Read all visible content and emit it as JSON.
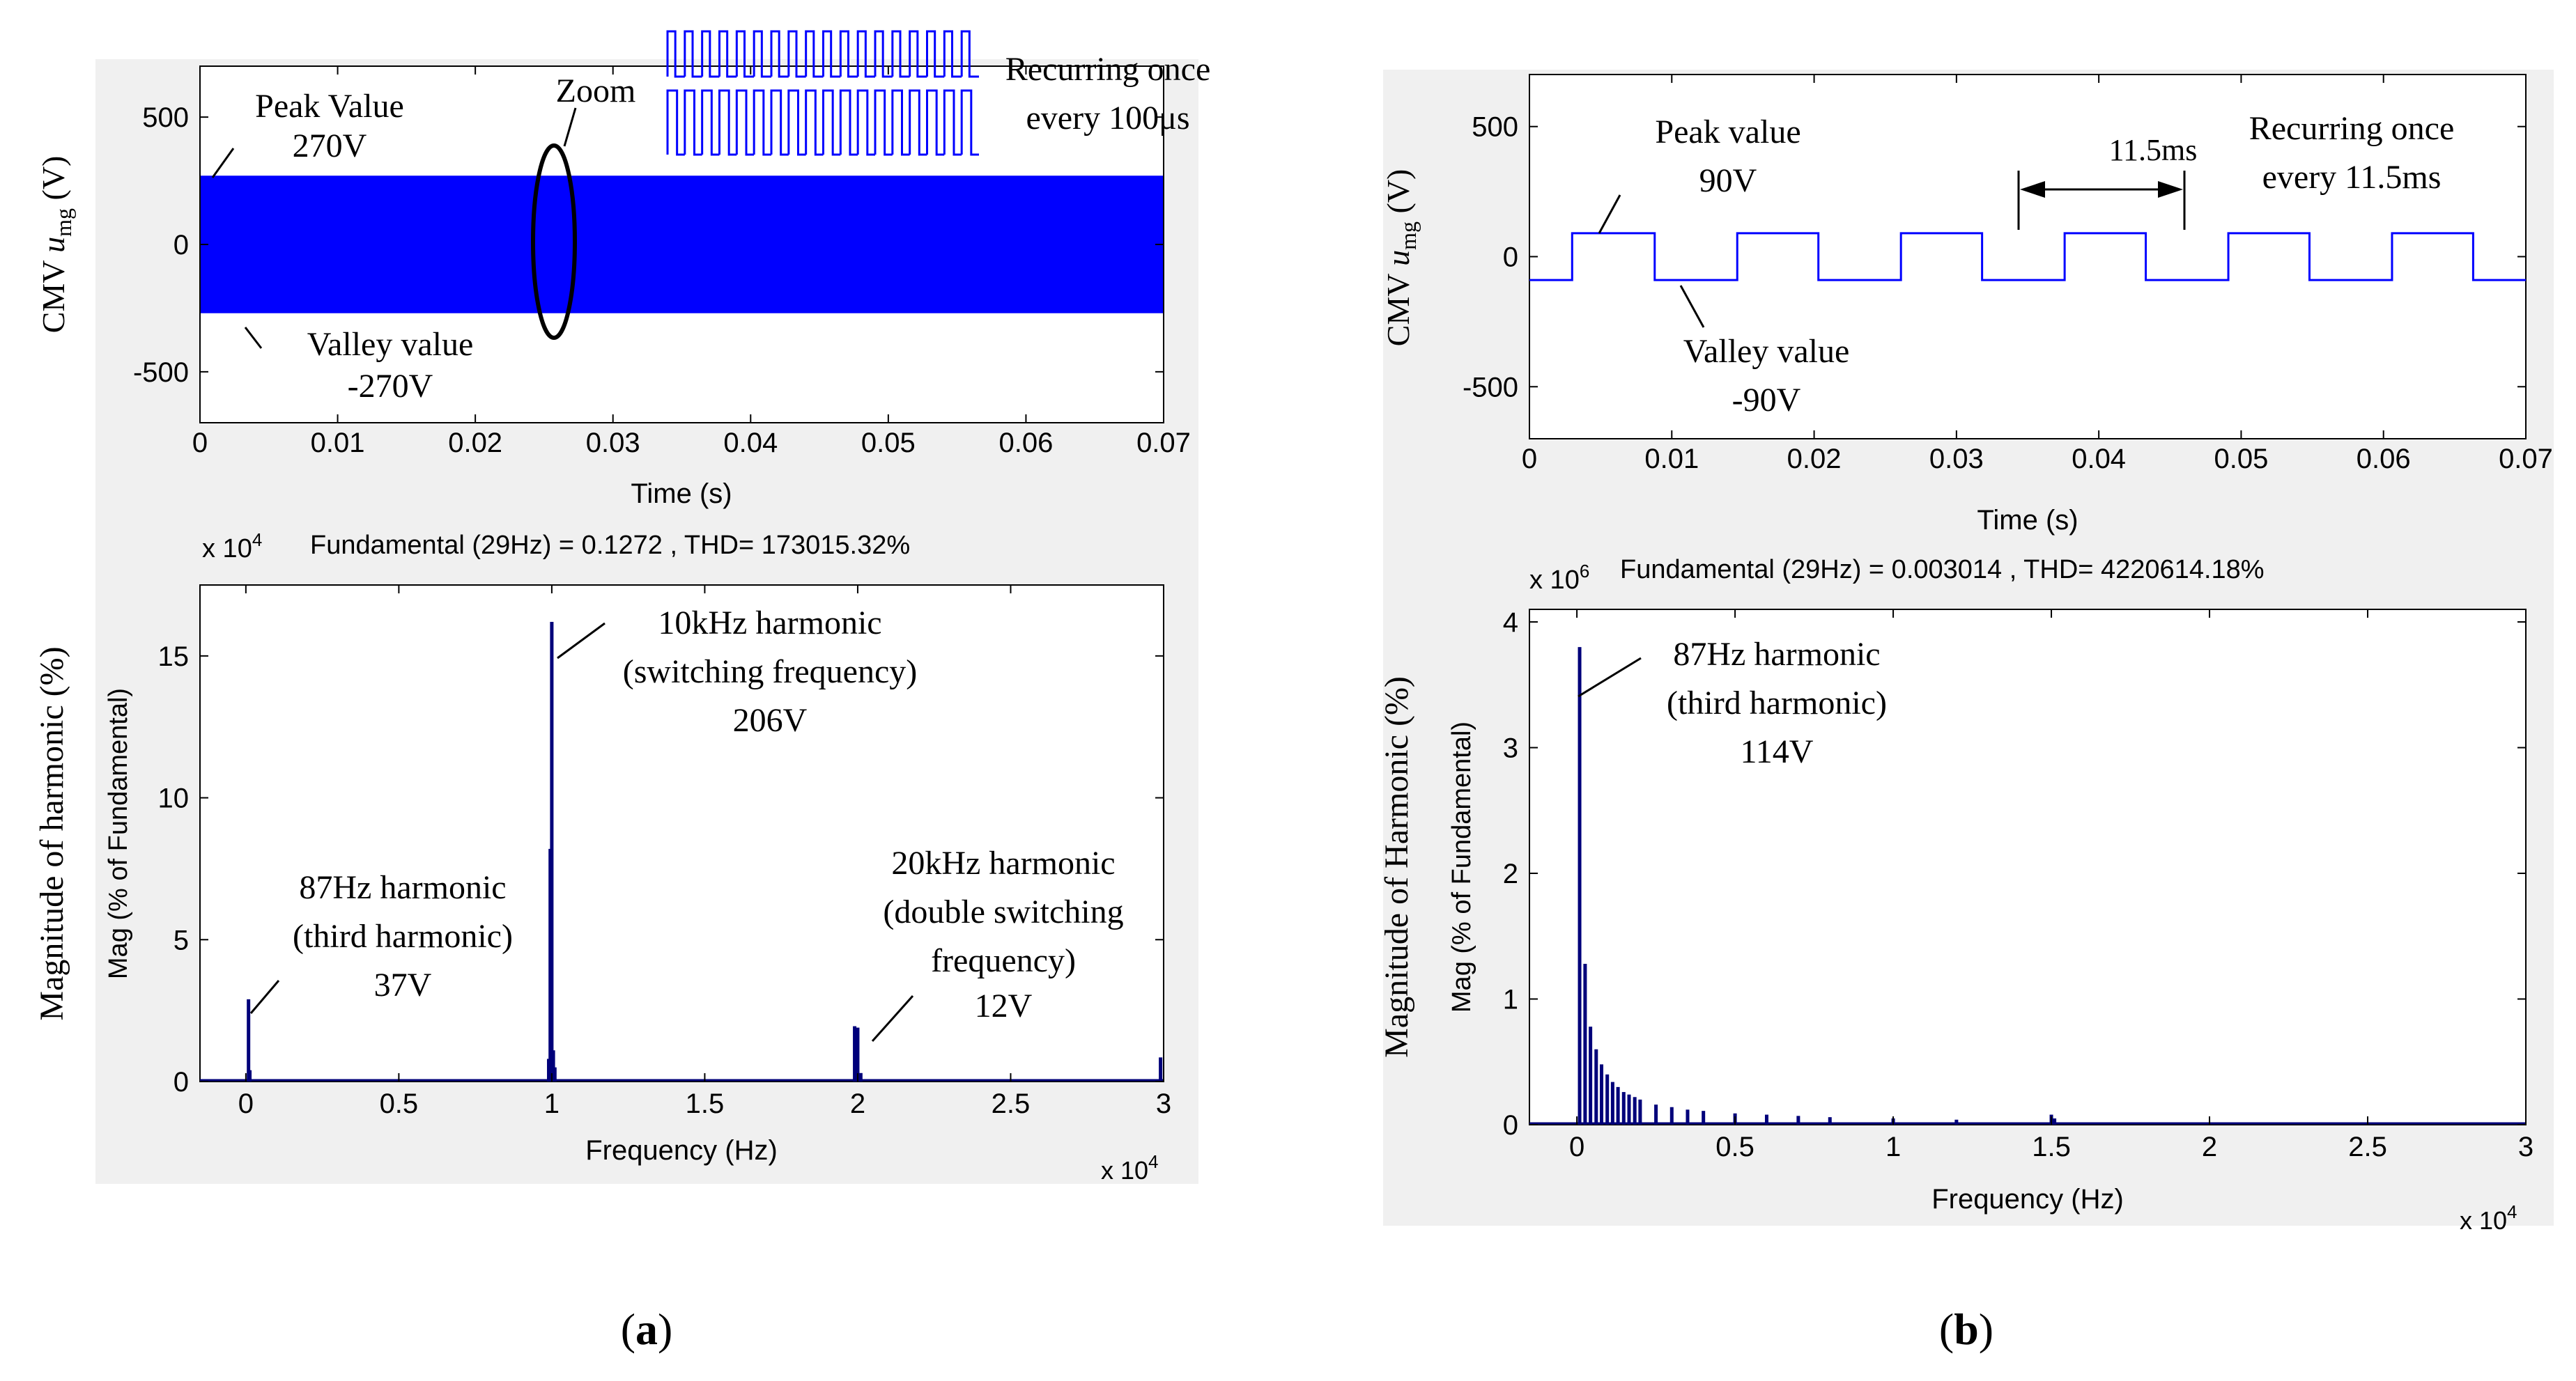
{
  "colors": {
    "trace": "#0000ff",
    "spectrum": "#00007a",
    "panel_bg": "#f0f0f0"
  },
  "panels": [
    {
      "label": "(a)",
      "label_paren_open": "(",
      "label_letter": "a",
      "label_paren_close": ")",
      "top": {
        "ylabel_main": "CMV ",
        "ylabel_var": "u",
        "ylabel_sub": "mg",
        "ylabel_unit": " (V)",
        "xlabel": "Time (s)",
        "xticks": [
          "0",
          "0.01",
          "0.02",
          "0.03",
          "0.04",
          "0.05",
          "0.06",
          "0.07"
        ],
        "yticks": [
          "500",
          "0",
          "-500"
        ],
        "annotations": {
          "peak_1": "Peak Value",
          "peak_2": "270V",
          "valley_1": "Valley value",
          "valley_2": "-270V",
          "zoom": "Zoom",
          "recur_1": "Recurring once",
          "recur_2": "every  100μs"
        }
      },
      "bottom": {
        "exponent_prefix": "x 10",
        "exponent_power": "4",
        "header": "Fundamental (29Hz) = 0.1272 , THD= 173015.32%",
        "ylabel_outer": "Magnitude of harmonic (%)",
        "ylabel_inner": "Mag (% of Fundamental)",
        "xlabel": "Frequency (Hz)",
        "x_exponent_prefix": "x 10",
        "x_exponent_power": "4",
        "xticks": [
          "0",
          "0.5",
          "1",
          "1.5",
          "2",
          "2.5",
          "3"
        ],
        "yticks": [
          "15",
          "10",
          "5",
          "0"
        ],
        "annotations": {
          "h10k_1": "10kHz harmonic",
          "h10k_2": "(switching frequency)",
          "h10k_3": "206V",
          "h87_1": "87Hz harmonic",
          "h87_2": "(third harmonic)",
          "h87_3": "37V",
          "h20k_1": "20kHz harmonic",
          "h20k_2": "(double switching",
          "h20k_3": "frequency)",
          "h20k_4": "12V"
        }
      }
    },
    {
      "label": "(b)",
      "label_paren_open": "(",
      "label_letter": "b",
      "label_paren_close": ")",
      "top": {
        "ylabel_main": "CMV ",
        "ylabel_var": "u",
        "ylabel_sub": "mg",
        "ylabel_unit": " (V)",
        "xlabel": "Time (s)",
        "xticks": [
          "0",
          "0.01",
          "0.02",
          "0.03",
          "0.04",
          "0.05",
          "0.06",
          "0.07"
        ],
        "yticks": [
          "500",
          "0",
          "-500"
        ],
        "annotations": {
          "peak_1": "Peak value",
          "peak_2": "90V",
          "valley_1": "Valley value",
          "valley_2": "-90V",
          "period": "11.5ms",
          "recur_1": "Recurring once",
          "recur_2": "every 11.5ms"
        }
      },
      "bottom": {
        "exponent_prefix": "x 10",
        "exponent_power": "6",
        "header": "Fundamental (29Hz) = 0.003014 , THD= 4220614.18%",
        "ylabel_outer": "Magnitude of Harmonic (%)",
        "ylabel_inner": "Mag (% of Fundamental)",
        "xlabel": "Frequency (Hz)",
        "x_exponent_prefix": "x 10",
        "x_exponent_power": "4",
        "xticks": [
          "0",
          "0.5",
          "1",
          "1.5",
          "2",
          "2.5",
          "3"
        ],
        "yticks": [
          "4",
          "3",
          "2",
          "1",
          "0"
        ],
        "annotations": {
          "h87_1": "87Hz harmonic",
          "h87_2": "(third harmonic)",
          "h87_3": "114V"
        }
      }
    }
  ],
  "chart_data": [
    {
      "type": "line",
      "panel": "a-top",
      "xlabel": "Time (s)",
      "ylabel": "CMV umg (V)",
      "xlim": [
        0,
        0.07
      ],
      "ylim": [
        -700,
        700
      ],
      "series": [
        {
          "name": "",
          "description_values": {
            "peak": 270,
            "valley": -270,
            "period_s": 0.0001
          }
        }
      ]
    },
    {
      "type": "bar",
      "panel": "a-bottom",
      "title": "Fundamental (29Hz) = 0.1272 , THD= 173015.32%",
      "xlabel": "Frequency (Hz)",
      "ylabel": "Mag (% of Fundamental)",
      "x_multiplier": 10000,
      "y_multiplier": 10000,
      "xlim": [
        -0.15,
        3
      ],
      "ylim": [
        0,
        17.5
      ],
      "x": [
        0.0087,
        0.013,
        0.99,
        0.995,
        1.0,
        1.005,
        1.01,
        1.99,
        2.0,
        2.01,
        2.99
      ],
      "values": [
        2.9,
        0.4,
        0.8,
        8.2,
        16.2,
        1.1,
        0.5,
        1.95,
        1.9,
        0.3,
        0.85
      ]
    },
    {
      "type": "line",
      "panel": "b-top",
      "xlabel": "Time (s)",
      "ylabel": "CMV umg (V)",
      "xlim": [
        0,
        0.07
      ],
      "ylim": [
        -700,
        700
      ],
      "x": [
        0,
        0.003,
        0.003,
        0.0088,
        0.0088,
        0.0146,
        0.0146,
        0.0203,
        0.0203,
        0.0261,
        0.0261,
        0.0318,
        0.0318,
        0.0376,
        0.0376,
        0.0433,
        0.0433,
        0.0491,
        0.0491,
        0.0548,
        0.0548,
        0.0606,
        0.0606,
        0.0663,
        0.0663,
        0.07
      ],
      "values": [
        -90,
        -90,
        90,
        90,
        -90,
        -90,
        90,
        90,
        -90,
        -90,
        90,
        90,
        -90,
        -90,
        90,
        90,
        -90,
        -90,
        90,
        90,
        -90,
        -90,
        90,
        90,
        -90,
        -90
      ]
    },
    {
      "type": "bar",
      "panel": "b-bottom",
      "title": "Fundamental (29Hz) = 0.003014 , THD= 4220614.18%",
      "xlabel": "Frequency (Hz)",
      "ylabel": "Mag (% of Fundamental)",
      "x_multiplier": 10000,
      "y_multiplier": 1000000,
      "xlim": [
        -0.15,
        3
      ],
      "ylim": [
        0,
        4.1
      ],
      "x": [
        0.0087,
        0.026,
        0.043,
        0.061,
        0.078,
        0.096,
        0.113,
        0.13,
        0.148,
        0.165,
        0.183,
        0.2,
        0.25,
        0.3,
        0.35,
        0.4,
        0.5,
        0.6,
        0.7,
        0.8,
        1.0,
        1.2,
        1.5,
        1.51
      ],
      "values": [
        3.8,
        1.28,
        0.78,
        0.6,
        0.48,
        0.4,
        0.34,
        0.3,
        0.26,
        0.24,
        0.22,
        0.2,
        0.16,
        0.14,
        0.12,
        0.11,
        0.09,
        0.08,
        0.07,
        0.06,
        0.05,
        0.04,
        0.08,
        0.05
      ]
    }
  ]
}
